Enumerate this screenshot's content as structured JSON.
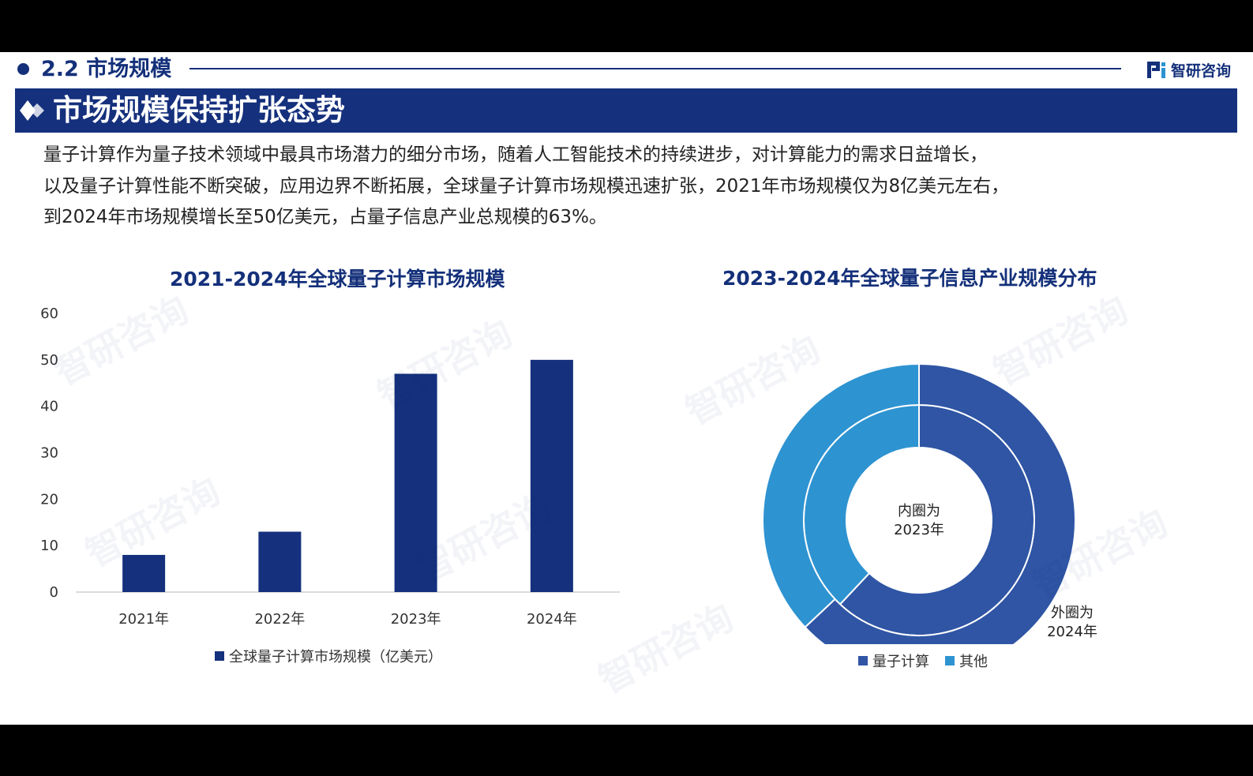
{
  "header": {
    "section_title": "2.2 市场规模",
    "logo_text": "智研咨询",
    "banner_title": "市场规模保持扩张态势"
  },
  "paragraph": {
    "lines": [
      "量子计算作为量子技术领域中最具市场潜力的细分市场，随着人工智能技术的持续进步，对计算能力的需求日益增长，",
      "以及量子计算性能不断突破，应用边界不断拓展，全球量子计算市场规模迅速扩张，2021年市场规模仅为8亿美元左右，",
      "到2024年市场规模增长至50亿美元，占量子信息产业总规模的63%。"
    ]
  },
  "watermark": "智研咨询",
  "chart_data": [
    {
      "type": "bar",
      "title": "2021-2024年全球量子计算市场规模",
      "categories": [
        "2021年",
        "2022年",
        "2023年",
        "2024年"
      ],
      "series": [
        {
          "name": "全球量子计算市场规模（亿美元）",
          "values": [
            8,
            13,
            47,
            50
          ],
          "color": "#15307c"
        }
      ],
      "ylim": [
        0,
        60
      ],
      "yticks": [
        0,
        10,
        20,
        30,
        40,
        50,
        60
      ],
      "grid": false,
      "legend": "bottom"
    },
    {
      "type": "pie",
      "subtype": "donut",
      "title": "2023-2024年全球量子信息产业规模分布",
      "labels": [
        "量子计算",
        "其他"
      ],
      "colors": [
        "#2f55a4",
        "#2e93d1"
      ],
      "rings": [
        {
          "name": "2023年",
          "label": "内圈为\n2023年",
          "values": [
            62,
            38
          ]
        },
        {
          "name": "2024年",
          "label": "外圈为\n2024年",
          "values": [
            63,
            37
          ]
        }
      ],
      "legend": "bottom"
    }
  ]
}
